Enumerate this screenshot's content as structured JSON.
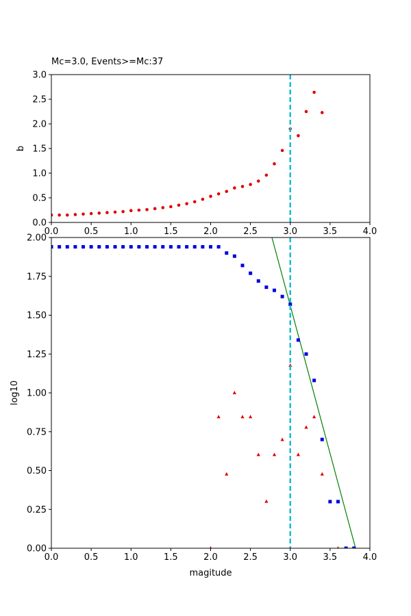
{
  "chart_data": [
    {
      "type": "scatter",
      "title": "Mc=3.0, Events>=Mc:37",
      "xlabel": "",
      "ylabel": "b",
      "xlim": [
        0,
        4
      ],
      "ylim": [
        0,
        3
      ],
      "xticks": [
        "0.0",
        "0.5",
        "1.0",
        "1.5",
        "2.0",
        "2.5",
        "3.0",
        "3.5",
        "4.0"
      ],
      "yticks": [
        "0.0",
        "0.5",
        "1.0",
        "1.5",
        "2.0",
        "2.5",
        "3.0"
      ],
      "vline": {
        "x": 3.0,
        "color": "#17becf",
        "style": "dashed"
      },
      "series": [
        {
          "color": "#e00000",
          "marker": "circle",
          "x": [
            0.0,
            0.1,
            0.2,
            0.3,
            0.4,
            0.5,
            0.6,
            0.7,
            0.8,
            0.9,
            1.0,
            1.1,
            1.2,
            1.3,
            1.4,
            1.5,
            1.6,
            1.7,
            1.8,
            1.9,
            2.0,
            2.1,
            2.2,
            2.3,
            2.4,
            2.5,
            2.6,
            2.7,
            2.8,
            2.9,
            3.0,
            3.1,
            3.2,
            3.3,
            3.4
          ],
          "y": [
            0.15,
            0.15,
            0.15,
            0.16,
            0.17,
            0.18,
            0.19,
            0.2,
            0.21,
            0.22,
            0.24,
            0.25,
            0.26,
            0.28,
            0.3,
            0.32,
            0.35,
            0.38,
            0.42,
            0.47,
            0.53,
            0.58,
            0.63,
            0.7,
            0.73,
            0.77,
            0.84,
            0.96,
            1.19,
            1.46,
            1.9,
            1.76,
            2.25,
            2.64,
            2.23
          ]
        }
      ]
    },
    {
      "type": "scatter",
      "title": "",
      "xlabel": "magitude",
      "ylabel": "log10",
      "xlim": [
        0,
        4
      ],
      "ylim": [
        0,
        2
      ],
      "xticks": [
        "0.0",
        "0.5",
        "1.0",
        "1.5",
        "2.0",
        "2.5",
        "3.0",
        "3.5",
        "4.0"
      ],
      "yticks": [
        "0.00",
        "0.25",
        "0.50",
        "0.75",
        "1.00",
        "1.25",
        "1.50",
        "1.75",
        "2.00"
      ],
      "vline": {
        "x": 3.0,
        "color": "#17becf",
        "style": "dashed"
      },
      "fit_line": {
        "color": "#008000",
        "points": [
          [
            2.77,
            2.0
          ],
          [
            3.82,
            0.0
          ]
        ]
      },
      "series": [
        {
          "color": "#0000e0",
          "marker": "square",
          "x": [
            0.0,
            0.1,
            0.2,
            0.3,
            0.4,
            0.5,
            0.6,
            0.7,
            0.8,
            0.9,
            1.0,
            1.1,
            1.2,
            1.3,
            1.4,
            1.5,
            1.6,
            1.7,
            1.8,
            1.9,
            2.0,
            2.1,
            2.2,
            2.3,
            2.4,
            2.5,
            2.6,
            2.7,
            2.8,
            2.9,
            3.0,
            3.1,
            3.2,
            3.3,
            3.4,
            3.5,
            3.6,
            3.7,
            3.8
          ],
          "y": [
            1.94,
            1.94,
            1.94,
            1.94,
            1.94,
            1.94,
            1.94,
            1.94,
            1.94,
            1.94,
            1.94,
            1.94,
            1.94,
            1.94,
            1.94,
            1.94,
            1.94,
            1.94,
            1.94,
            1.94,
            1.94,
            1.94,
            1.9,
            1.88,
            1.82,
            1.77,
            1.72,
            1.68,
            1.66,
            1.62,
            1.57,
            1.34,
            1.25,
            1.08,
            0.7,
            0.3,
            0.3,
            0.0,
            0.0
          ]
        },
        {
          "color": "#e00000",
          "marker": "triangle",
          "x": [
            2.0,
            2.1,
            2.2,
            2.3,
            2.4,
            2.5,
            2.6,
            2.7,
            2.8,
            2.9,
            3.0,
            3.1,
            3.2,
            3.3,
            3.4,
            3.6
          ],
          "y": [
            0.0,
            0.845,
            0.477,
            1.0,
            0.845,
            0.845,
            0.602,
            0.301,
            0.602,
            0.699,
            1.176,
            0.602,
            0.778,
            0.845,
            0.477,
            0.0
          ]
        }
      ]
    }
  ]
}
